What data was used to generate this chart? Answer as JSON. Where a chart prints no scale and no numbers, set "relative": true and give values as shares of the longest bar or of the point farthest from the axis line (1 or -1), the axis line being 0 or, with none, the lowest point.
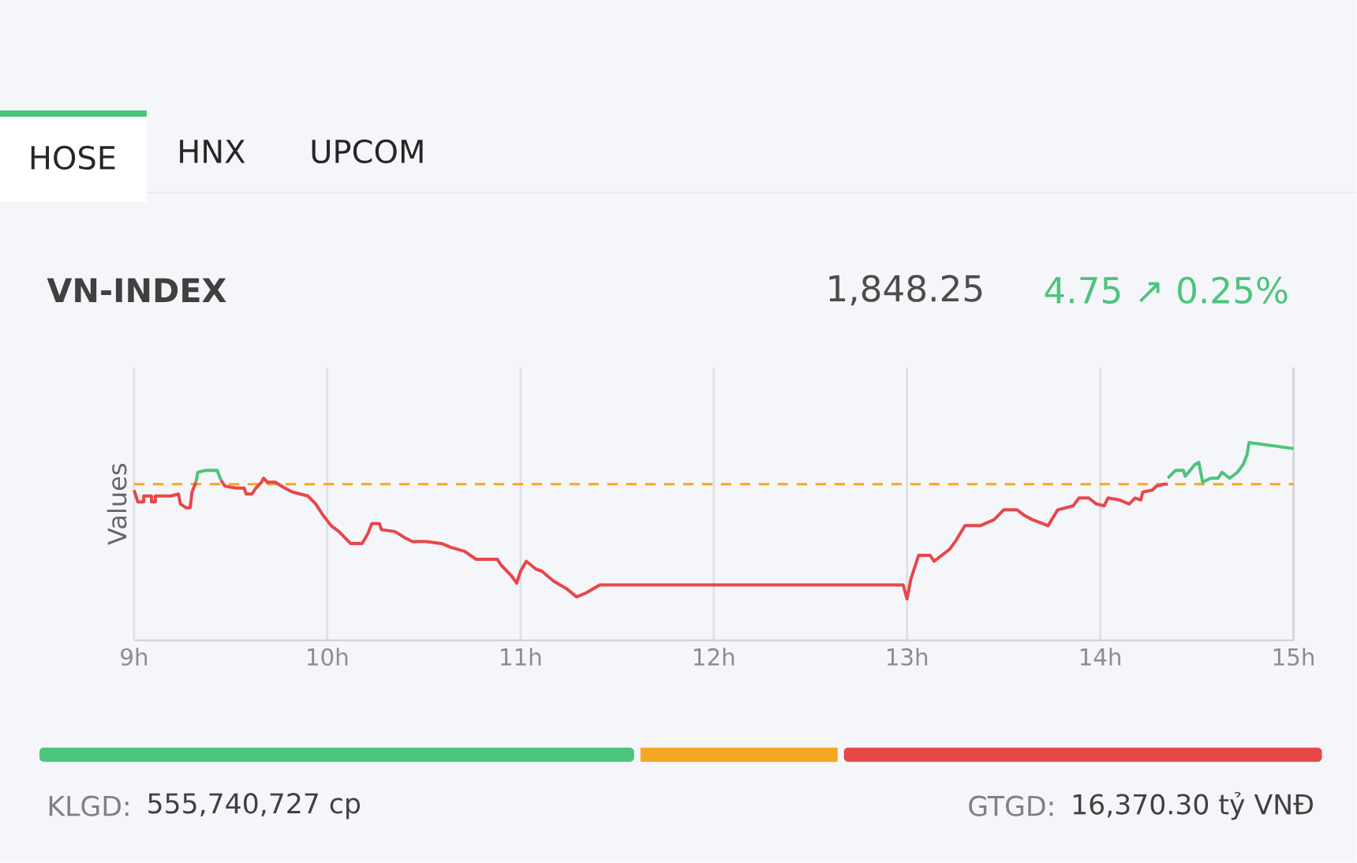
{
  "chart_data": {
    "type": "line",
    "title": "VN-INDEX",
    "ylabel": "Values",
    "relative": true,
    "xlim": [
      9,
      15
    ],
    "xticks": [
      {
        "value": 9,
        "label": "9h"
      },
      {
        "value": 10,
        "label": "10h"
      },
      {
        "value": 11,
        "label": "11h"
      },
      {
        "value": 12,
        "label": "12h"
      },
      {
        "value": 13,
        "label": "13h"
      },
      {
        "value": 14,
        "label": "14h"
      },
      {
        "value": 15,
        "label": "15h"
      }
    ],
    "grid": "x",
    "marker": "none",
    "line_style": "solid",
    "series": [
      {
        "color": "#e8474a",
        "x": [
          9.0,
          9.02,
          9.05,
          9.05,
          9.09,
          9.09,
          9.11,
          9.11,
          9.19,
          9.23,
          9.24,
          9.27,
          9.29,
          9.3,
          9.32,
          null,
          9.45,
          9.47,
          9.53,
          9.57,
          9.58,
          9.61,
          9.63,
          9.66,
          9.67,
          9.69,
          9.73,
          9.78,
          9.82,
          9.9,
          9.94,
          9.98,
          10.02,
          10.06,
          10.12,
          10.18,
          10.21,
          10.23,
          10.27,
          10.28,
          10.35,
          10.4,
          10.44,
          10.51,
          10.59,
          10.64,
          10.71,
          10.77,
          10.88,
          10.9,
          10.95,
          10.98,
          11.0,
          11.03,
          11.08,
          11.11,
          11.17,
          11.24,
          11.29,
          11.34,
          11.41,
          11.48,
          12.71,
          12.98,
          13.0,
          13.02,
          13.06,
          13.12,
          13.14,
          13.22,
          13.25,
          13.3,
          13.32,
          13.38,
          13.45,
          13.5,
          13.57,
          13.61,
          13.65,
          13.73,
          13.78,
          13.86,
          13.89,
          13.94,
          13.98,
          14.02,
          14.04,
          14.1,
          14.15,
          14.18,
          14.21,
          14.22,
          14.27,
          14.29,
          14.33,
          14.35
        ],
        "values": [
          0.76,
          0.7,
          0.7,
          0.73,
          0.73,
          0.7,
          0.7,
          0.73,
          0.73,
          0.74,
          0.69,
          0.67,
          0.67,
          0.75,
          0.8,
          null,
          0.81,
          0.78,
          0.77,
          0.77,
          0.74,
          0.74,
          0.77,
          0.8,
          0.82,
          0.8,
          0.8,
          0.77,
          0.75,
          0.73,
          0.69,
          0.63,
          0.58,
          0.55,
          0.49,
          0.49,
          0.54,
          0.59,
          0.59,
          0.56,
          0.55,
          0.52,
          0.5,
          0.5,
          0.49,
          0.47,
          0.45,
          0.41,
          0.41,
          0.38,
          0.33,
          0.29,
          0.35,
          0.4,
          0.36,
          0.35,
          0.3,
          0.26,
          0.22,
          0.24,
          0.28,
          0.28,
          0.28,
          0.28,
          0.21,
          0.31,
          0.43,
          0.43,
          0.4,
          0.46,
          0.5,
          0.58,
          0.58,
          0.58,
          0.61,
          0.66,
          0.66,
          0.63,
          0.61,
          0.58,
          0.66,
          0.68,
          0.72,
          0.72,
          0.69,
          0.68,
          0.72,
          0.71,
          0.69,
          0.72,
          0.71,
          0.75,
          0.76,
          0.78,
          0.79,
          0.79
        ]
      },
      {
        "color": "#4cc47c",
        "x": [
          9.32,
          9.33,
          9.37,
          9.43,
          9.45,
          null,
          14.35,
          14.39,
          14.43,
          14.44,
          14.49,
          14.51,
          14.53,
          14.57,
          14.61,
          14.63,
          14.67,
          14.71,
          14.74,
          14.76,
          14.77,
          15.0
        ],
        "values": [
          0.8,
          0.85,
          0.86,
          0.86,
          0.81,
          null,
          0.82,
          0.86,
          0.86,
          0.83,
          0.89,
          0.9,
          0.8,
          0.82,
          0.82,
          0.85,
          0.82,
          0.85,
          0.89,
          0.94,
          1.0,
          0.97
        ]
      }
    ],
    "ref_lines": [
      {
        "axis": "y",
        "value": 0.79,
        "color": "#f5a623",
        "line_style": "dashed"
      }
    ],
    "annotations": [
      "HOSE",
      "HNX",
      "UPCOM",
      "1,848.25",
      "4.75 ↗ 0.25%",
      "KLGD:",
      "555,740,727 cp",
      "GTGD:",
      "16,370.30 tỷ VNĐ"
    ]
  }
}
